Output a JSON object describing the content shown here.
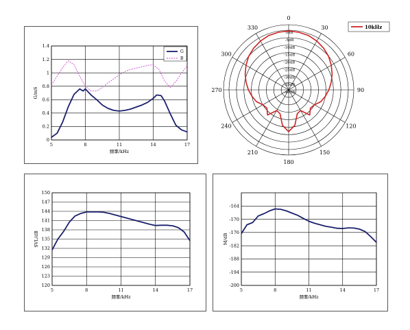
{
  "chart_data": [
    {
      "id": "conductance",
      "type": "line",
      "xlabel": "频率/kHz",
      "ylabel": "G/mS",
      "xlim": [
        5,
        17
      ],
      "ylim": [
        0,
        1.4
      ],
      "xticks": [
        "5",
        "8",
        "11",
        "14",
        "17"
      ],
      "yticks": [
        "0",
        "0.2",
        "0.4",
        "0.6",
        "0.8",
        "1",
        "1.2",
        "1.4"
      ],
      "grid": true,
      "legend_position": "top-right",
      "series": [
        {
          "name": "G",
          "color": "#1a1f6b",
          "style": "solid",
          "x": [
            5,
            5.5,
            6,
            6.5,
            7,
            7.5,
            7.8,
            8,
            8.5,
            9,
            9.5,
            10,
            10.5,
            11,
            11.5,
            12,
            12.5,
            13,
            13.5,
            14,
            14.3,
            14.7,
            15,
            15.5,
            16,
            16.5,
            17
          ],
          "values": [
            0.04,
            0.1,
            0.27,
            0.5,
            0.68,
            0.76,
            0.73,
            0.76,
            0.67,
            0.6,
            0.52,
            0.47,
            0.44,
            0.43,
            0.44,
            0.46,
            0.49,
            0.52,
            0.56,
            0.62,
            0.67,
            0.66,
            0.58,
            0.39,
            0.22,
            0.15,
            0.12
          ]
        },
        {
          "name": "B",
          "color": "#cc44cc",
          "style": "dashed",
          "x": [
            5,
            5.5,
            6,
            6.5,
            7,
            7.5,
            8,
            8.5,
            9,
            9.5,
            10,
            10.5,
            11,
            11.5,
            12,
            12.5,
            13,
            13.5,
            14,
            14.5,
            15,
            15.5,
            16,
            16.5,
            17
          ],
          "values": [
            0.82,
            0.95,
            1.08,
            1.18,
            1.12,
            0.95,
            0.8,
            0.73,
            0.73,
            0.78,
            0.85,
            0.91,
            0.97,
            1.02,
            1.05,
            1.07,
            1.09,
            1.11,
            1.12,
            1.05,
            0.88,
            0.78,
            0.87,
            1.0,
            1.1
          ]
        }
      ]
    },
    {
      "id": "directivity",
      "type": "polar",
      "legend_position": "top-right",
      "angle_labels": [
        "0",
        "30",
        "60",
        "90",
        "120",
        "150",
        "180",
        "210",
        "240",
        "270",
        "300",
        "330"
      ],
      "radial_labels": [
        "0dB",
        "-5dB",
        "-10dB",
        "-15dB",
        "-20dB",
        "-25dB",
        "-30dB",
        "-35dB",
        "-40dB"
      ],
      "rlim": [
        -40,
        0
      ],
      "series": [
        {
          "name": "10kHz",
          "color": "#cc2222",
          "angles": [
            0,
            10,
            20,
            30,
            40,
            50,
            60,
            70,
            80,
            90,
            100,
            110,
            120,
            130,
            140,
            150,
            160,
            170,
            180,
            190,
            200,
            210,
            220,
            230,
            240,
            250,
            260,
            270,
            280,
            290,
            300,
            310,
            320,
            330,
            340,
            350
          ],
          "values": [
            -0.5,
            -0.8,
            -1.2,
            -2.2,
            -3.5,
            -5,
            -7,
            -9,
            -11,
            -13,
            -15,
            -17,
            -20,
            -21,
            -18,
            -24,
            -23,
            -16,
            -12,
            -16,
            -23,
            -24,
            -18,
            -21,
            -20,
            -17,
            -15,
            -13,
            -11,
            -9,
            -7,
            -5,
            -3.5,
            -2.2,
            -1.2,
            -0.8
          ]
        }
      ]
    },
    {
      "id": "svl",
      "type": "line",
      "xlabel": "频率/kHz",
      "ylabel": "SVL/dB",
      "xlim": [
        5,
        17
      ],
      "ylim": [
        120,
        150
      ],
      "xticks": [
        "5",
        "8",
        "11",
        "14",
        "17"
      ],
      "yticks": [
        "120",
        "123",
        "126",
        "129",
        "132",
        "135",
        "138",
        "141",
        "144",
        "147",
        "150"
      ],
      "grid": true,
      "series": [
        {
          "color": "#1a1f6b",
          "style": "solid",
          "x": [
            5,
            5.5,
            6,
            6.5,
            7,
            7.5,
            8,
            8.5,
            9,
            9.5,
            10,
            10.5,
            11,
            11.5,
            12,
            12.5,
            13,
            13.5,
            14,
            14.5,
            15,
            15.5,
            16,
            16.5,
            17
          ],
          "values": [
            131.5,
            135,
            137.5,
            140.5,
            142.5,
            143.3,
            143.8,
            143.8,
            143.8,
            143.7,
            143.3,
            142.8,
            142.3,
            141.8,
            141.3,
            140.8,
            140.3,
            139.8,
            139.4,
            139.5,
            139.5,
            139.3,
            138.7,
            137.3,
            134.5
          ]
        }
      ]
    },
    {
      "id": "tvr",
      "type": "line",
      "xlabel": "频率/kHz",
      "ylabel": "M/dB",
      "xlim": [
        5,
        17
      ],
      "ylim": [
        -200,
        -158
      ],
      "xticks": [
        "5",
        "8",
        "11",
        "14",
        "17"
      ],
      "yticks": [
        "-164",
        "-170",
        "-176",
        "-182",
        "-188",
        "-194",
        "-200"
      ],
      "grid": true,
      "series": [
        {
          "color": "#1a1f6b",
          "style": "solid",
          "x": [
            5,
            5.5,
            6,
            6.5,
            7,
            7.5,
            8,
            8.5,
            9,
            9.5,
            10,
            10.5,
            11,
            11.5,
            12,
            12.5,
            13,
            13.5,
            14,
            14.5,
            15,
            15.5,
            16,
            16.5,
            17
          ],
          "values": [
            -176.5,
            -172.5,
            -171.5,
            -168.5,
            -167.5,
            -166.2,
            -165.3,
            -165.5,
            -166.2,
            -167.2,
            -168.2,
            -169.6,
            -170.9,
            -171.8,
            -172.5,
            -173.2,
            -173.6,
            -174.1,
            -174.2,
            -173.9,
            -174.0,
            -174.5,
            -175.6,
            -177.9,
            -180.5
          ]
        }
      ]
    }
  ]
}
